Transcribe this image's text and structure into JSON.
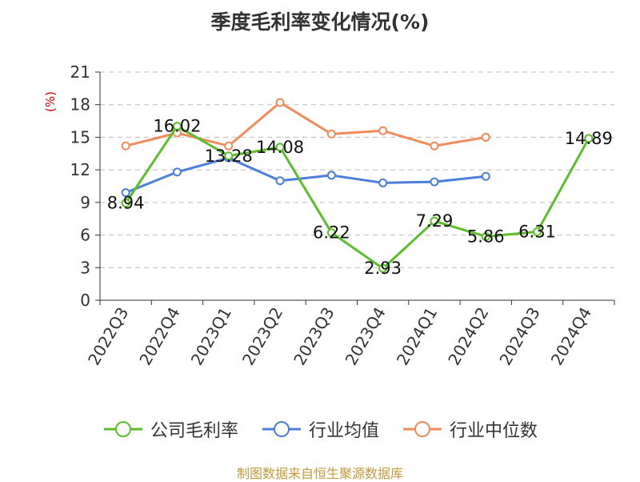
{
  "title": "季度毛利率变化情况(%)",
  "source": "制图数据来自恒生聚源数据库",
  "colors": {
    "source_text": "#c49a3a",
    "unit_text": "#cc0000"
  },
  "chart_data": {
    "type": "line",
    "ylabel": "(%)",
    "ylim": [
      0,
      21
    ],
    "yticks": [
      0,
      3,
      6,
      9,
      12,
      15,
      18,
      21
    ],
    "grid": true,
    "legend_position": "bottom",
    "categories": [
      "2022Q3",
      "2022Q4",
      "2023Q1",
      "2023Q2",
      "2023Q3",
      "2023Q4",
      "2024Q1",
      "2024Q2",
      "2024Q3",
      "2024Q4"
    ],
    "series": [
      {
        "name": "公司毛利率",
        "color": "#5cbf2a",
        "show_labels": true,
        "values": [
          8.94,
          16.02,
          13.28,
          14.08,
          6.22,
          2.93,
          7.29,
          5.86,
          6.31,
          14.89
        ]
      },
      {
        "name": "行业均值",
        "color": "#4a7fdb",
        "show_labels": false,
        "values": [
          9.9,
          11.8,
          13.1,
          11.0,
          11.5,
          10.8,
          10.9,
          11.4,
          null,
          null
        ]
      },
      {
        "name": "行业中位数",
        "color": "#f08c5a",
        "show_labels": false,
        "values": [
          14.2,
          15.4,
          14.2,
          18.2,
          15.3,
          15.6,
          14.2,
          15.0,
          null,
          null
        ]
      }
    ]
  }
}
